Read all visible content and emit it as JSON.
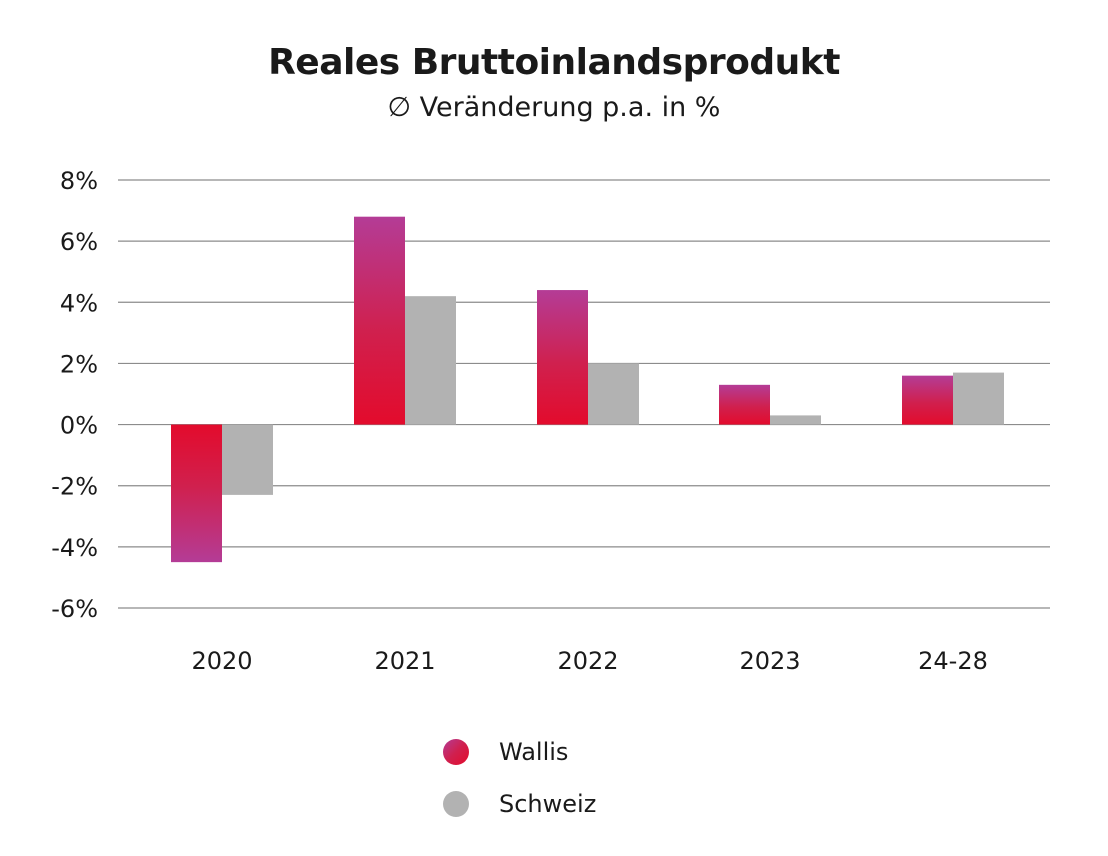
{
  "chart_data": {
    "type": "bar",
    "title": "Reales Bruttoinlandsprodukt",
    "subtitle": "∅ Veränderung p.a. in %",
    "categories": [
      "2020",
      "2021",
      "2022",
      "2023",
      "24-28"
    ],
    "series": [
      {
        "name": "Wallis",
        "values": [
          -4.5,
          6.8,
          4.4,
          1.3,
          1.6
        ],
        "color": "#e30b2c",
        "color_gradient_end": "#b43c96"
      },
      {
        "name": "Schweiz",
        "values": [
          -2.3,
          4.2,
          2.0,
          0.3,
          1.7
        ],
        "color": "#b2b2b2"
      }
    ],
    "ylim": [
      -6,
      8
    ],
    "yticks": [
      8,
      6,
      4,
      2,
      0,
      -2,
      -4,
      -6
    ],
    "ytick_labels": [
      "8%",
      "6%",
      "4%",
      "2%",
      "0%",
      "-2%",
      "-4%",
      "-6%"
    ],
    "grid": true,
    "legend_position": "bottom"
  }
}
